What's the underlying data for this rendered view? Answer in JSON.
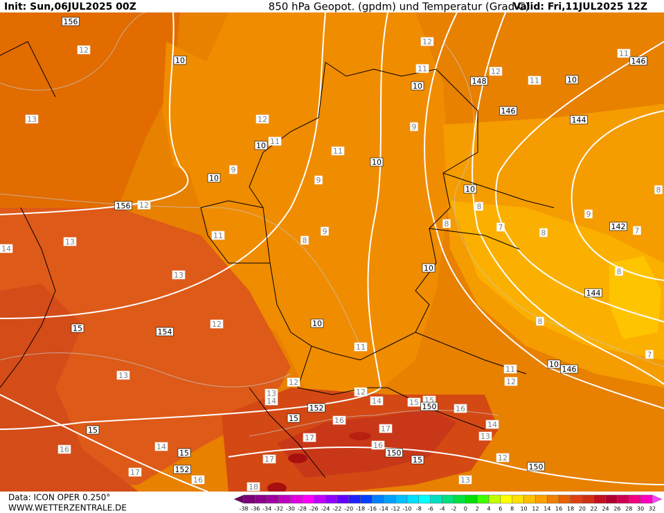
{
  "header": {
    "init": "Init: Sun,06JUL2025 00Z",
    "title": "850 hPa Geopot. (gpdm) und Temperatur (Grad C)",
    "valid": "Valid: Fri,11JUL2025 12Z"
  },
  "footer": {
    "data": "Data: ICON OPER 0.250°",
    "site": "WWW.WETTERZENTRALE.DE"
  },
  "colorbar": {
    "labels": [
      -38,
      -36,
      -34,
      -32,
      -30,
      -28,
      -26,
      -24,
      -22,
      -20,
      -18,
      -16,
      -14,
      -12,
      -10,
      -8,
      -6,
      -4,
      -2,
      0,
      2,
      4,
      6,
      8,
      10,
      12,
      14,
      16,
      18,
      20,
      22,
      24,
      26,
      28,
      30,
      32
    ],
    "colors": [
      "#660066",
      "#7a007a",
      "#8c008c",
      "#a000a0",
      "#c000c0",
      "#e000e0",
      "#ff00ff",
      "#c000ff",
      "#9000ff",
      "#6000ff",
      "#2020ff",
      "#0040ff",
      "#0080ff",
      "#00a0ff",
      "#00c0ff",
      "#00e0ff",
      "#00ffff",
      "#00e0c0",
      "#00e080",
      "#00e040",
      "#00e000",
      "#40ff00",
      "#c0ff00",
      "#ffff00",
      "#ffe000",
      "#ffc000",
      "#ffa000",
      "#f08000",
      "#e86000",
      "#e04010",
      "#d03010",
      "#c01020",
      "#b00030",
      "#d00050",
      "#f00080",
      "#ff00c0",
      "#ff40ff"
    ]
  },
  "map_labels": {
    "geopotential": [
      156,
      10,
      146,
      148,
      10,
      10,
      146,
      144,
      10,
      10,
      10,
      156,
      10,
      142,
      10,
      144,
      15,
      154,
      10,
      10,
      146,
      152,
      150,
      15,
      15,
      150,
      15,
      15,
      152,
      150
    ],
    "temperature": [
      12,
      13,
      12,
      11,
      11,
      9,
      9,
      12,
      13,
      11,
      9,
      8,
      14,
      13,
      12,
      11,
      13,
      12,
      13,
      14,
      12,
      14,
      15,
      15,
      16,
      16,
      17,
      17,
      16,
      14,
      13,
      12,
      16,
      14,
      17,
      16,
      17,
      18,
      13,
      12,
      11,
      12,
      11,
      11,
      9,
      8,
      8,
      7,
      8,
      9,
      8,
      7,
      8,
      8,
      7,
      11,
      12
    ]
  }
}
